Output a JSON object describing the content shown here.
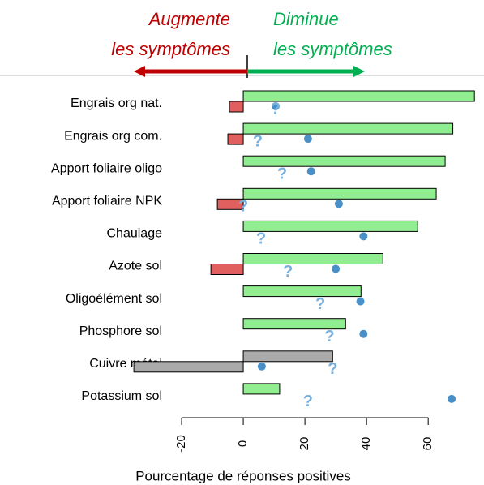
{
  "chart_data": {
    "type": "bar",
    "orientation": "horizontal",
    "annotations": [
      {
        "lines": [
          "Augmente",
          "les symptômes"
        ],
        "color": "#c00000",
        "arrow": "left"
      },
      {
        "lines": [
          "Diminue",
          "les symptômes"
        ],
        "color": "#00b050",
        "arrow": "right"
      }
    ],
    "categories": [
      "Engrais org nat.",
      "Engrais org com.",
      "Apport foliaire oligo",
      "Apport foliaire NPK",
      "Chaulage",
      "Azote sol",
      "Oligoélément sol",
      "Phosphore sol",
      "Cuivre métal",
      "Potassium sol"
    ],
    "series": [
      {
        "kind": "bar",
        "slot": "upper",
        "color": "#90ee90",
        "colors": [
          "#90ee90",
          "#90ee90",
          "#90ee90",
          "#90ee90",
          "#90ee90",
          "#90ee90",
          "#90ee90",
          "#90ee90",
          "#aaaaaa",
          "#90ee90"
        ],
        "values": [
          75,
          68,
          65.5,
          62.6,
          56.6,
          45.3,
          38.2,
          33.2,
          29,
          11.8
        ]
      },
      {
        "kind": "bar",
        "slot": "lower",
        "color": "#e06060",
        "colors": [
          "#e06060",
          "#e06060",
          "#e06060",
          "#e06060",
          "#e06060",
          "#e06060",
          "#e06060",
          "#e06060",
          "#aaaaaa",
          "#e06060"
        ],
        "values": [
          -4.5,
          -5,
          null,
          -8.4,
          null,
          -10.5,
          null,
          null,
          -35.5,
          null
        ]
      },
      {
        "kind": "dot",
        "color": "#4a90c8",
        "values": [
          10.5,
          21,
          22,
          31,
          39,
          30,
          38,
          39,
          6,
          67.6
        ]
      },
      {
        "kind": "glyph",
        "marker": "?",
        "color": "#7ab0dc",
        "values": [
          10.5,
          4.7,
          12.6,
          0,
          5.8,
          14.5,
          25,
          28,
          29,
          21
        ]
      }
    ],
    "xlim": [
      -40,
      76
    ],
    "xticks": [
      -20,
      0,
      20,
      40,
      60
    ],
    "xlabel": "Pourcentage de réponses positives"
  }
}
